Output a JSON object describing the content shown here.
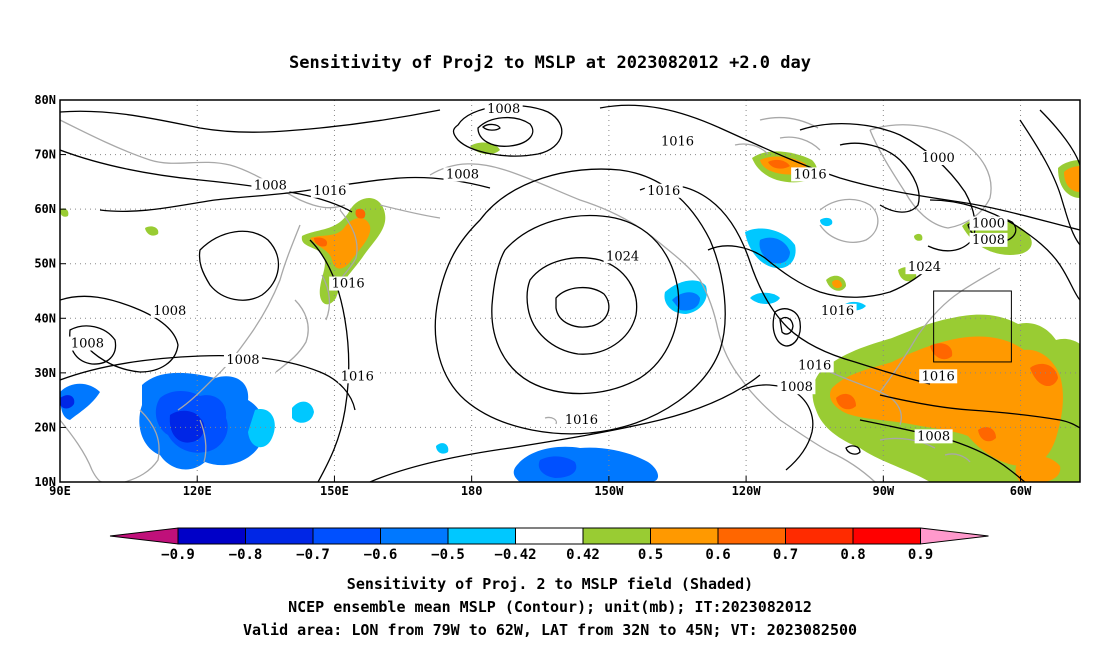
{
  "title": "Sensitivity of Proj2 to MSLP at 2023082012 +2.0 day",
  "map": {
    "lon_range": [
      90,
      313
    ],
    "lat_range": [
      10,
      80
    ],
    "lat_ticks": [
      {
        "value": 80,
        "label": "80N"
      },
      {
        "value": 70,
        "label": "70N"
      },
      {
        "value": 60,
        "label": "60N"
      },
      {
        "value": 50,
        "label": "50N"
      },
      {
        "value": 40,
        "label": "40N"
      },
      {
        "value": 30,
        "label": "30N"
      },
      {
        "value": 20,
        "label": "20N"
      },
      {
        "value": 10,
        "label": "10N"
      }
    ],
    "lon_ticks": [
      {
        "value": 90,
        "label": "90E"
      },
      {
        "value": 120,
        "label": "120E"
      },
      {
        "value": 150,
        "label": "150E"
      },
      {
        "value": 180,
        "label": "180"
      },
      {
        "value": 210,
        "label": "150W"
      },
      {
        "value": 240,
        "label": "120W"
      },
      {
        "value": 270,
        "label": "90W"
      },
      {
        "value": 300,
        "label": "60W"
      }
    ],
    "gridlines": "dotted",
    "coastline_color": "#a8a8a8",
    "contour_color": "#000000",
    "valid_box": {
      "lon": [
        281,
        298
      ],
      "lat": [
        32,
        45
      ]
    }
  },
  "contour_labels": [
    {
      "text": "1008",
      "lon": 187,
      "lat": 78
    },
    {
      "text": "1016",
      "lon": 225,
      "lat": 72
    },
    {
      "text": "1000",
      "lon": 282,
      "lat": 69
    },
    {
      "text": "1016",
      "lon": 254,
      "lat": 66
    },
    {
      "text": "1008",
      "lon": 136,
      "lat": 64
    },
    {
      "text": "1016",
      "lon": 149,
      "lat": 63
    },
    {
      "text": "1008",
      "lon": 178,
      "lat": 66
    },
    {
      "text": "1016",
      "lon": 222,
      "lat": 63
    },
    {
      "text": "1000",
      "lon": 293,
      "lat": 57
    },
    {
      "text": "1008",
      "lon": 293,
      "lat": 54
    },
    {
      "text": "1024",
      "lon": 213,
      "lat": 51
    },
    {
      "text": "1024",
      "lon": 279,
      "lat": 49
    },
    {
      "text": "1016",
      "lon": 153,
      "lat": 46
    },
    {
      "text": "1008",
      "lon": 114,
      "lat": 41
    },
    {
      "text": "1016",
      "lon": 260,
      "lat": 41
    },
    {
      "text": "1008",
      "lon": 96,
      "lat": 35
    },
    {
      "text": "1008",
      "lon": 130,
      "lat": 32
    },
    {
      "text": "1016",
      "lon": 155,
      "lat": 29
    },
    {
      "text": "1016",
      "lon": 255,
      "lat": 31
    },
    {
      "text": "1008",
      "lon": 251,
      "lat": 27
    },
    {
      "text": "1016",
      "lon": 282,
      "lat": 29
    },
    {
      "text": "1016",
      "lon": 204,
      "lat": 21
    },
    {
      "text": "1008",
      "lon": 281,
      "lat": 18
    }
  ],
  "colorbar": {
    "levels": [
      "-0.9",
      "-0.8",
      "-0.7",
      "-0.6",
      "-0.5",
      "-0.42",
      "0.42",
      "0.5",
      "0.6",
      "0.7",
      "0.8",
      "0.9"
    ],
    "colors": [
      "#c0107a",
      "#0000c8",
      "#0026e6",
      "#0050ff",
      "#0078ff",
      "#00c8ff",
      "#ffffff",
      "#99cc33",
      "#ff9900",
      "#ff6600",
      "#ff2b00",
      "#ff0000",
      "#ff99cc"
    ]
  },
  "captions": [
    "Sensitivity of Proj. 2 to MSLP field (Shaded)",
    "NCEP ensemble mean MSLP (Contour); unit(mb); IT:2023082012",
    "Valid area: LON from 79W to 62W, LAT from 32N to 45N; VT: 2023082500"
  ]
}
